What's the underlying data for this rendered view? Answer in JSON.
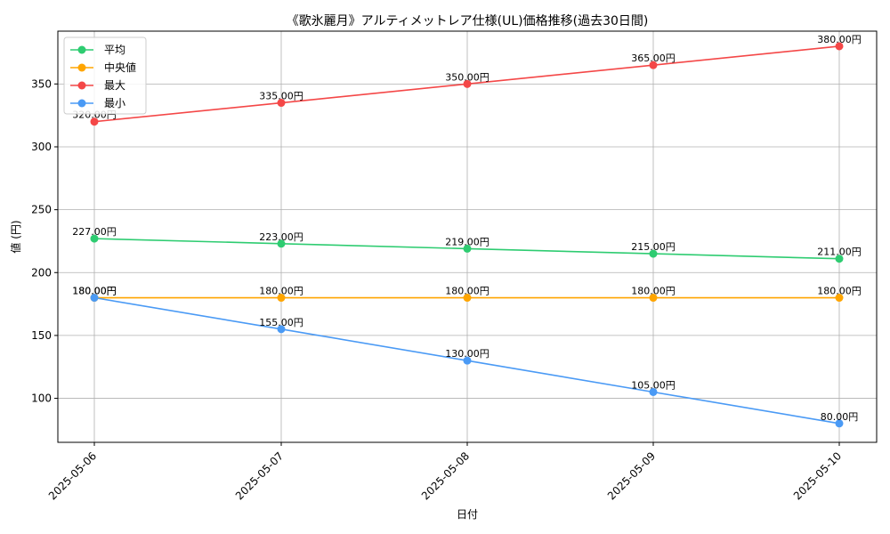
{
  "chart_data": {
    "type": "line",
    "title": "《歌氷麗月》アルティメットレア仕様(UL)価格推移(過去30日間)",
    "xlabel": "日付",
    "ylabel": "値 (円)",
    "categories": [
      "2025-05-06",
      "2025-05-07",
      "2025-05-08",
      "2025-05-09",
      "2025-05-10"
    ],
    "ylim": [
      65,
      392
    ],
    "yticks": [
      100,
      150,
      200,
      250,
      300,
      350
    ],
    "grid": true,
    "legend_position": "top-left",
    "series": [
      {
        "name": "平均",
        "color": "#2ecc71",
        "values": [
          227,
          223,
          219,
          215,
          211
        ],
        "labels": [
          "227.00円",
          "223.00円",
          "219.00円",
          "215.00円",
          "211.00円"
        ]
      },
      {
        "name": "中央値",
        "color": "#ffa500",
        "values": [
          180,
          180,
          180,
          180,
          180
        ],
        "labels": [
          "180.00円",
          "180.00円",
          "180.00円",
          "180.00円",
          "180.00円"
        ]
      },
      {
        "name": "最大",
        "color": "#f44747",
        "values": [
          320,
          335,
          350,
          365,
          380
        ],
        "labels": [
          "320.00円",
          "335.00円",
          "350.00円",
          "365.00円",
          "380.00円"
        ]
      },
      {
        "name": "最小",
        "color": "#4a9af5",
        "values": [
          180,
          155,
          130,
          105,
          80
        ],
        "labels": [
          "180.00円",
          "155.00円",
          "130.00円",
          "105.00円",
          "80.00円"
        ]
      }
    ]
  }
}
